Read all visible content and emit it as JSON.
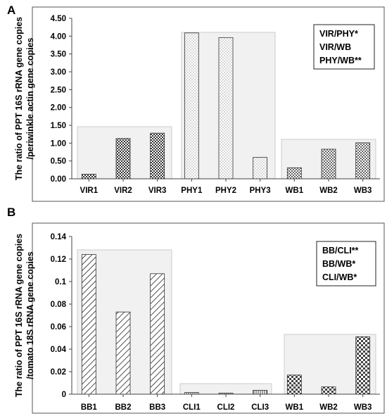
{
  "chart_data": [
    {
      "type": "bar",
      "panel": "A",
      "ylabel_lines": [
        "The ratio of PPT 16S rRNA gene copies",
        "/periwinkle actin gene copies"
      ],
      "categories": [
        "VIR1",
        "VIR2",
        "VIR3",
        "PHY1",
        "PHY2",
        "PHY3",
        "WB1",
        "WB2",
        "WB3"
      ],
      "values": [
        0.13,
        1.13,
        1.28,
        4.09,
        3.96,
        0.6,
        0.31,
        0.83,
        1.01
      ],
      "ylim": [
        0,
        4.5
      ],
      "yticks": [
        "0.00",
        "0.50",
        "1.00",
        "1.50",
        "2.00",
        "2.50",
        "3.00",
        "3.50",
        "4.00",
        "4.50"
      ],
      "grid": false,
      "legend_position": "top-right",
      "significance": [
        "VIR/PHY*",
        "VIR/WB",
        "PHY/WB**"
      ]
    },
    {
      "type": "bar",
      "panel": "B",
      "ylabel_lines": [
        "The ratio of PPT 16S rRNA gene copies",
        "/tomato 18S rRNA gene copies"
      ],
      "categories": [
        "BB1",
        "BB2",
        "BB3",
        "CLI1",
        "CLI2",
        "CLI3",
        "WB1",
        "WB2",
        "WB3"
      ],
      "values": [
        0.124,
        0.073,
        0.107,
        0.0015,
        0.001,
        0.0035,
        0.017,
        0.0065,
        0.051
      ],
      "ylim": [
        0,
        0.14
      ],
      "yticks": [
        "0",
        "0.02",
        "0.04",
        "0.06",
        "0.08",
        "0.1",
        "0.12",
        "0.14"
      ],
      "grid": false,
      "legend_position": "top-right",
      "significance": [
        "BB/CLI**",
        "BB/WB*",
        "CLI/WB*"
      ]
    }
  ]
}
